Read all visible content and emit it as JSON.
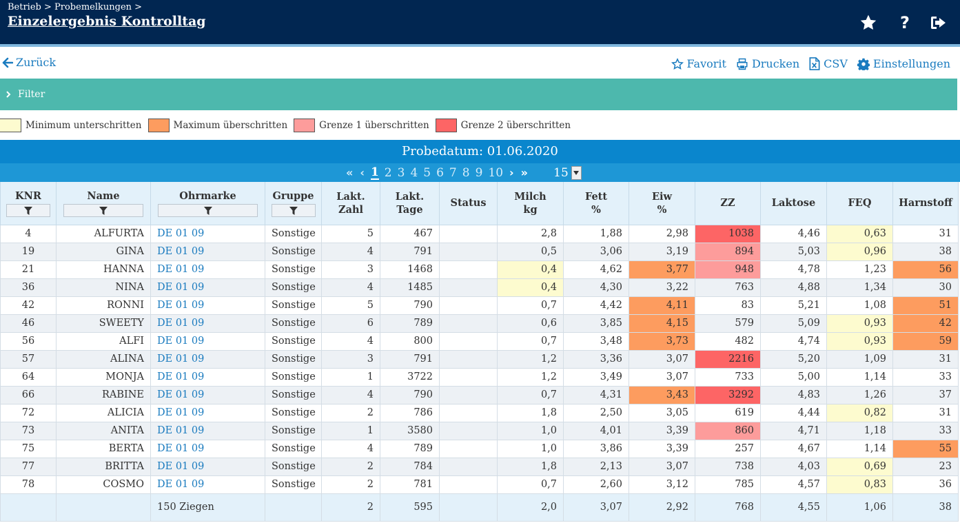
{
  "header": {
    "breadcrumb": "Betrieb > Probemelkungen >",
    "title": "Einzelergebnis Kontrolltag"
  },
  "actionbar": {
    "back_label": "Zurück",
    "favorit_label": "Favorit",
    "drucken_label": "Drucken",
    "csv_label": "CSV",
    "einstellungen_label": "Einstellungen"
  },
  "filter": {
    "label": "Filter"
  },
  "legend": {
    "min": "Minimum unterschritten",
    "max": "Maximum überschritten",
    "g1": "Grenze 1 überschritten",
    "g2": "Grenze 2 überschritten"
  },
  "colors": {
    "min": "#fdfbcf",
    "max": "#fd9c5f",
    "g1": "#fd9c9b",
    "g2": "#fd6565"
  },
  "probe": {
    "label": "Probedatum: 01.06.2020"
  },
  "pager": {
    "pages": [
      "1",
      "2",
      "3",
      "4",
      "5",
      "6",
      "7",
      "8",
      "9",
      "10"
    ],
    "current": "1",
    "page_size": "15"
  },
  "table": {
    "headers": {
      "knr": "KNR",
      "name": "Name",
      "ohrmarke": "Ohrmarke",
      "gruppe": "Gruppe",
      "lakt_zahl_1": "Lakt.",
      "lakt_zahl_2": "Zahl",
      "lakt_tage_1": "Lakt.",
      "lakt_tage_2": "Tage",
      "status": "Status",
      "milch_1": "Milch",
      "milch_2": "kg",
      "fett_1": "Fett",
      "fett_2": "%",
      "eiw_1": "Eiw",
      "eiw_2": "%",
      "zz": "ZZ",
      "laktose": "Laktose",
      "feq": "FEQ",
      "harnstoff": "Harnstoff"
    },
    "rows": [
      {
        "knr": "4",
        "name": "ALFURTA",
        "ohrmarke": "DE 01 09",
        "gruppe": "Sonstige",
        "lakt_zahl": "5",
        "lakt_tage": "467",
        "status": "",
        "milch": "2,8",
        "fett": "1,88",
        "eiw": "2,98",
        "zz": "1038",
        "laktose": "4,46",
        "feq": "0,63",
        "harnstoff": "31"
      },
      {
        "knr": "19",
        "name": "GINA",
        "ohrmarke": "DE 01 09",
        "gruppe": "Sonstige",
        "lakt_zahl": "4",
        "lakt_tage": "791",
        "status": "",
        "milch": "0,5",
        "fett": "3,06",
        "eiw": "3,19",
        "zz": "894",
        "laktose": "5,03",
        "feq": "0,96",
        "harnstoff": "38"
      },
      {
        "knr": "21",
        "name": "HANNA",
        "ohrmarke": "DE 01 09",
        "gruppe": "Sonstige",
        "lakt_zahl": "3",
        "lakt_tage": "1468",
        "status": "",
        "milch": "0,4",
        "fett": "4,62",
        "eiw": "3,77",
        "zz": "948",
        "laktose": "4,78",
        "feq": "1,23",
        "harnstoff": "56"
      },
      {
        "knr": "36",
        "name": "NINA",
        "ohrmarke": "DE 01 09",
        "gruppe": "Sonstige",
        "lakt_zahl": "4",
        "lakt_tage": "1485",
        "status": "",
        "milch": "0,4",
        "fett": "4,30",
        "eiw": "3,22",
        "zz": "763",
        "laktose": "4,88",
        "feq": "1,34",
        "harnstoff": "30"
      },
      {
        "knr": "42",
        "name": "RONNI",
        "ohrmarke": "DE 01 09",
        "gruppe": "Sonstige",
        "lakt_zahl": "5",
        "lakt_tage": "790",
        "status": "",
        "milch": "0,7",
        "fett": "4,42",
        "eiw": "4,11",
        "zz": "83",
        "laktose": "5,21",
        "feq": "1,08",
        "harnstoff": "51"
      },
      {
        "knr": "46",
        "name": "SWEETY",
        "ohrmarke": "DE 01 09",
        "gruppe": "Sonstige",
        "lakt_zahl": "6",
        "lakt_tage": "789",
        "status": "",
        "milch": "0,6",
        "fett": "3,85",
        "eiw": "4,15",
        "zz": "579",
        "laktose": "5,09",
        "feq": "0,93",
        "harnstoff": "42"
      },
      {
        "knr": "56",
        "name": "ALFI",
        "ohrmarke": "DE 01 09",
        "gruppe": "Sonstige",
        "lakt_zahl": "4",
        "lakt_tage": "800",
        "status": "",
        "milch": "0,7",
        "fett": "3,48",
        "eiw": "3,73",
        "zz": "482",
        "laktose": "4,74",
        "feq": "0,93",
        "harnstoff": "59"
      },
      {
        "knr": "57",
        "name": "ALINA",
        "ohrmarke": "DE 01 09",
        "gruppe": "Sonstige",
        "lakt_zahl": "3",
        "lakt_tage": "791",
        "status": "",
        "milch": "1,2",
        "fett": "3,36",
        "eiw": "3,07",
        "zz": "2216",
        "laktose": "5,20",
        "feq": "1,09",
        "harnstoff": "31"
      },
      {
        "knr": "64",
        "name": "MONJA",
        "ohrmarke": "DE 01 09",
        "gruppe": "Sonstige",
        "lakt_zahl": "1",
        "lakt_tage": "3722",
        "status": "",
        "milch": "1,2",
        "fett": "3,49",
        "eiw": "3,07",
        "zz": "733",
        "laktose": "5,00",
        "feq": "1,14",
        "harnstoff": "33"
      },
      {
        "knr": "66",
        "name": "RABINE",
        "ohrmarke": "DE 01 09",
        "gruppe": "Sonstige",
        "lakt_zahl": "4",
        "lakt_tage": "790",
        "status": "",
        "milch": "0,7",
        "fett": "4,31",
        "eiw": "3,43",
        "zz": "3292",
        "laktose": "4,83",
        "feq": "1,26",
        "harnstoff": "37"
      },
      {
        "knr": "72",
        "name": "ALICIA",
        "ohrmarke": "DE 01 09",
        "gruppe": "Sonstige",
        "lakt_zahl": "2",
        "lakt_tage": "786",
        "status": "",
        "milch": "1,8",
        "fett": "2,50",
        "eiw": "3,05",
        "zz": "619",
        "laktose": "4,44",
        "feq": "0,82",
        "harnstoff": "31"
      },
      {
        "knr": "73",
        "name": "ANITA",
        "ohrmarke": "DE 01 09",
        "gruppe": "Sonstige",
        "lakt_zahl": "1",
        "lakt_tage": "3580",
        "status": "",
        "milch": "1,0",
        "fett": "4,01",
        "eiw": "3,39",
        "zz": "860",
        "laktose": "4,71",
        "feq": "1,18",
        "harnstoff": "33"
      },
      {
        "knr": "75",
        "name": "BERTA",
        "ohrmarke": "DE 01 09",
        "gruppe": "Sonstige",
        "lakt_zahl": "4",
        "lakt_tage": "789",
        "status": "",
        "milch": "1,0",
        "fett": "3,86",
        "eiw": "3,39",
        "zz": "257",
        "laktose": "4,67",
        "feq": "1,14",
        "harnstoff": "55"
      },
      {
        "knr": "77",
        "name": "BRITTA",
        "ohrmarke": "DE 01 09",
        "gruppe": "Sonstige",
        "lakt_zahl": "2",
        "lakt_tage": "784",
        "status": "",
        "milch": "1,8",
        "fett": "2,13",
        "eiw": "3,07",
        "zz": "738",
        "laktose": "4,03",
        "feq": "0,69",
        "harnstoff": "23"
      },
      {
        "knr": "78",
        "name": "COSMO",
        "ohrmarke": "DE 01 09",
        "gruppe": "Sonstige",
        "lakt_zahl": "2",
        "lakt_tage": "781",
        "status": "",
        "milch": "0,7",
        "fett": "2,60",
        "eiw": "3,12",
        "zz": "785",
        "laktose": "4,57",
        "feq": "0,83",
        "harnstoff": "36"
      }
    ],
    "highlights": {
      "0": {
        "zz": "g2",
        "feq": "min"
      },
      "1": {
        "zz": "g1",
        "feq": "min"
      },
      "2": {
        "milch": "min",
        "eiw": "max",
        "zz": "g1",
        "harnstoff": "max"
      },
      "3": {
        "milch": "min"
      },
      "4": {
        "eiw": "max",
        "harnstoff": "max"
      },
      "5": {
        "eiw": "max",
        "feq": "min",
        "harnstoff": "max"
      },
      "6": {
        "eiw": "max",
        "feq": "min",
        "harnstoff": "max"
      },
      "7": {
        "zz": "g2"
      },
      "9": {
        "eiw": "max",
        "zz": "g2"
      },
      "10": {
        "feq": "min"
      },
      "11": {
        "zz": "g1"
      },
      "12": {
        "harnstoff": "max"
      },
      "13": {
        "feq": "min"
      },
      "14": {
        "feq": "min"
      }
    },
    "footer": {
      "count": "150 Ziegen",
      "lakt_zahl": "2",
      "lakt_tage": "595",
      "milch": "2,0",
      "fett": "3,07",
      "eiw": "2,92",
      "zz": "768",
      "laktose": "4,55",
      "feq": "1,06",
      "harnstoff": "38"
    }
  }
}
